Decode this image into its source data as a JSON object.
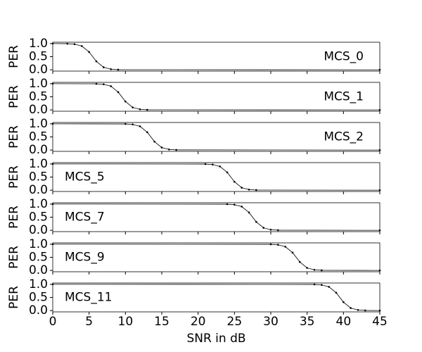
{
  "chart_data": [
    {
      "type": "line",
      "label": "MCS_0",
      "label_loc": "right",
      "ylabel": "PER",
      "ylim": [
        -0.05,
        1.05
      ],
      "yticks": [
        {
          "value": 0,
          "label": "0.0"
        },
        {
          "value": 0.5,
          "label": "0.5"
        },
        {
          "value": 1,
          "label": "1.0"
        }
      ],
      "color": "#000000",
      "x": [
        0,
        2,
        3,
        4,
        5,
        6,
        7,
        8,
        9,
        45
      ],
      "values": [
        1,
        0.995,
        0.977,
        0.905,
        0.679,
        0.321,
        0.095,
        0.023,
        0.005,
        0
      ]
    },
    {
      "type": "line",
      "label": "MCS_1",
      "label_loc": "right",
      "ylabel": "PER",
      "ylim": [
        -0.05,
        1.05
      ],
      "yticks": [
        {
          "value": 0,
          "label": "0.0"
        },
        {
          "value": 0.5,
          "label": "0.5"
        },
        {
          "value": 1,
          "label": "1.0"
        }
      ],
      "color": "#000000",
      "x": [
        0,
        6,
        7,
        8,
        9,
        10,
        11,
        12,
        13,
        45
      ],
      "values": [
        1,
        0.995,
        0.977,
        0.905,
        0.679,
        0.321,
        0.095,
        0.023,
        0.005,
        0
      ]
    },
    {
      "type": "line",
      "label": "MCS_2",
      "label_loc": "right",
      "ylabel": "PER",
      "ylim": [
        -0.05,
        1.05
      ],
      "yticks": [
        {
          "value": 0,
          "label": "0.0"
        },
        {
          "value": 0.5,
          "label": "0.5"
        },
        {
          "value": 1,
          "label": "1.0"
        }
      ],
      "color": "#000000",
      "x": [
        0,
        10,
        11,
        12,
        13,
        14,
        15,
        16,
        17,
        45
      ],
      "values": [
        1,
        0.995,
        0.977,
        0.905,
        0.679,
        0.321,
        0.095,
        0.023,
        0.005,
        0
      ]
    },
    {
      "type": "line",
      "label": "MCS_5",
      "label_loc": "left",
      "ylabel": "PER",
      "ylim": [
        -0.05,
        1.05
      ],
      "yticks": [
        {
          "value": 0,
          "label": "0.0"
        },
        {
          "value": 0.5,
          "label": "0.5"
        },
        {
          "value": 1,
          "label": "1.0"
        }
      ],
      "color": "#000000",
      "x": [
        0,
        21,
        22,
        23,
        24,
        25,
        26,
        27,
        28,
        45
      ],
      "values": [
        1,
        0.995,
        0.977,
        0.905,
        0.679,
        0.321,
        0.095,
        0.023,
        0.005,
        0
      ]
    },
    {
      "type": "line",
      "label": "MCS_7",
      "label_loc": "left",
      "ylabel": "PER",
      "ylim": [
        -0.05,
        1.05
      ],
      "yticks": [
        {
          "value": 0,
          "label": "0.0"
        },
        {
          "value": 0.5,
          "label": "0.5"
        },
        {
          "value": 1,
          "label": "1.0"
        }
      ],
      "color": "#000000",
      "x": [
        0,
        24,
        25,
        26,
        27,
        28,
        29,
        30,
        31,
        45
      ],
      "values": [
        1,
        0.995,
        0.977,
        0.905,
        0.679,
        0.321,
        0.095,
        0.023,
        0.005,
        0
      ]
    },
    {
      "type": "line",
      "label": "MCS_9",
      "label_loc": "left",
      "ylabel": "PER",
      "ylim": [
        -0.05,
        1.05
      ],
      "yticks": [
        {
          "value": 0,
          "label": "0.0"
        },
        {
          "value": 0.5,
          "label": "0.5"
        },
        {
          "value": 1,
          "label": "1.0"
        }
      ],
      "color": "#000000",
      "x": [
        0,
        30,
        31,
        32,
        33,
        34,
        35,
        36,
        37,
        45
      ],
      "values": [
        1,
        0.995,
        0.977,
        0.905,
        0.679,
        0.321,
        0.095,
        0.023,
        0.005,
        0
      ]
    },
    {
      "type": "line",
      "label": "MCS_11",
      "label_loc": "left",
      "ylabel": "PER",
      "xlabel": "SNR in dB",
      "ylim": [
        -0.05,
        1.05
      ],
      "yticks": [
        {
          "value": 0,
          "label": "0.0"
        },
        {
          "value": 0.5,
          "label": "0.5"
        },
        {
          "value": 1,
          "label": "1.0"
        }
      ],
      "color": "#000000",
      "xlim": [
        0,
        45
      ],
      "xticks": [
        0,
        5,
        10,
        15,
        20,
        25,
        30,
        35,
        40,
        45
      ],
      "x": [
        0,
        36,
        37,
        38,
        39,
        40,
        41,
        42,
        43,
        45
      ],
      "values": [
        1,
        0.995,
        0.977,
        0.905,
        0.679,
        0.321,
        0.095,
        0.023,
        0.005,
        0
      ]
    }
  ]
}
